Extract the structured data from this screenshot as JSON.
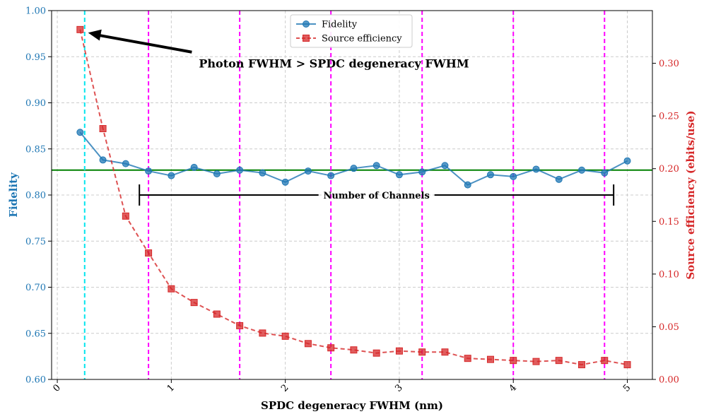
{
  "chart_data": {
    "type": "line",
    "xlabel": "SPDC degeneracy FWHM (nm)",
    "ylabel_left": "Fidelity",
    "ylabel_right": "Source efficiency (ebits/use)",
    "xlim": [
      -0.05,
      5.22
    ],
    "ylim_left": [
      0.6,
      1.0
    ],
    "ylim_right": [
      0.0,
      0.35
    ],
    "x_ticks": [
      0,
      1,
      2,
      3,
      4,
      5
    ],
    "x_tick_labels": [
      "0",
      "1",
      "2",
      "3",
      "4",
      "5"
    ],
    "y_left_ticks": [
      0.6,
      0.65,
      0.7,
      0.75,
      0.8,
      0.85,
      0.9,
      0.95,
      1.0
    ],
    "y_left_tick_labels": [
      "0.60",
      "0.65",
      "0.70",
      "0.75",
      "0.80",
      "0.85",
      "0.90",
      "0.95",
      "1.00"
    ],
    "y_right_ticks": [
      0.0,
      0.05,
      0.1,
      0.15,
      0.2,
      0.25,
      0.3
    ],
    "y_right_tick_labels": [
      "0.00",
      "0.05",
      "0.10",
      "0.15",
      "0.20",
      "0.25",
      "0.30"
    ],
    "grid": true,
    "legend_position": "top-center",
    "x": [
      0.2,
      0.4,
      0.6,
      0.8,
      1.0,
      1.2,
      1.4,
      1.6,
      1.8,
      2.0,
      2.2,
      2.4,
      2.6,
      2.8,
      3.0,
      3.2,
      3.4,
      3.6,
      3.8,
      4.0,
      4.2,
      4.4,
      4.6,
      4.8,
      5.0
    ],
    "series": [
      {
        "name": "Fidelity",
        "axis": "left",
        "color": "#1f77b4",
        "marker": "circle",
        "linestyle": "solid",
        "values": [
          0.868,
          0.838,
          0.834,
          0.826,
          0.821,
          0.83,
          0.823,
          0.827,
          0.824,
          0.814,
          0.826,
          0.821,
          0.829,
          0.832,
          0.822,
          0.825,
          0.832,
          0.811,
          0.822,
          0.82,
          0.828,
          0.817,
          0.827,
          0.824,
          0.837
        ]
      },
      {
        "name": "Source efficiency",
        "axis": "right",
        "color": "#d62728",
        "marker": "square",
        "linestyle": "dashed",
        "values": [
          0.332,
          0.238,
          0.155,
          0.12,
          0.086,
          0.073,
          0.062,
          0.051,
          0.044,
          0.041,
          0.034,
          0.03,
          0.028,
          0.025,
          0.027,
          0.026,
          0.026,
          0.02,
          0.019,
          0.018,
          0.017,
          0.018,
          0.014,
          0.018,
          0.014
        ]
      }
    ],
    "reference_lines": {
      "horizontal_fidelity": 0.827,
      "horizontal_color": "#008000",
      "cyan_vertical_x": 0.24,
      "cyan_color": "#00e5ee",
      "magenta_verticals_x": [
        0.8,
        1.6,
        2.4,
        3.2,
        4.0,
        4.8
      ],
      "magenta_color": "#ff00ff"
    },
    "annotations": {
      "arrow_text": "Photon FWHM > SPDC degeneracy FWHM",
      "arrow_target": {
        "x": 0.27,
        "fidelity": 0.976
      },
      "arrow_tail": {
        "x": 1.18,
        "fidelity": 0.955
      },
      "bracket_text": "Number of Channels",
      "bracket_range": [
        0.72,
        4.88
      ],
      "bracket_fidelity": 0.8
    },
    "colors": {
      "left_axis": "#1f77b4",
      "right_axis": "#d62728",
      "grid": "#cccccc"
    }
  }
}
